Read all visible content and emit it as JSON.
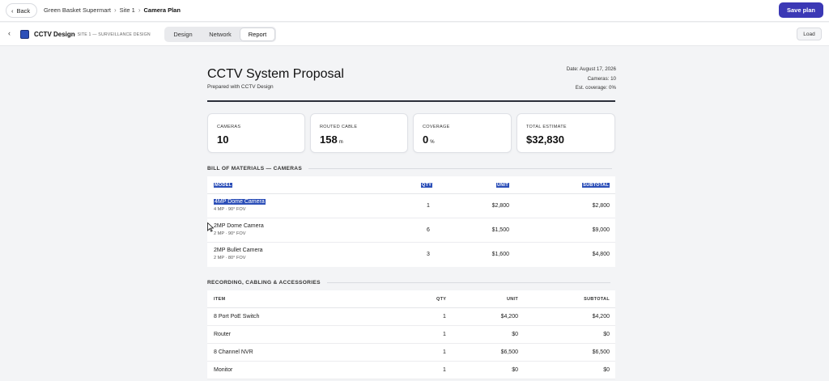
{
  "topbar": {
    "back_label": "Back",
    "breadcrumbs": [
      "Green Basket Supermart",
      "Site 1",
      "Camera Plan"
    ],
    "save_label": "Save plan"
  },
  "subbar": {
    "app_name": "CCTV Design",
    "app_subtitle": "· SITE 1 — SURVEILLANCE DESIGN",
    "tabs": [
      {
        "label": "Design",
        "active": false
      },
      {
        "label": "Network",
        "active": false
      },
      {
        "label": "Report",
        "active": true
      }
    ],
    "load_label": "Load"
  },
  "doc": {
    "title": "CCTV System Proposal",
    "subtitle": "Prepared with CCTV Design",
    "date": "Date: August 17, 2026",
    "cameras": "Cameras: 10",
    "coverage": "Est. coverage: 0%"
  },
  "cards": [
    {
      "label": "CAMERAS",
      "value": "10",
      "unit": ""
    },
    {
      "label": "ROUTED CABLE",
      "value": "158",
      "unit": "m"
    },
    {
      "label": "COVERAGE",
      "value": "0",
      "unit": "%"
    },
    {
      "label": "TOTAL ESTIMATE",
      "value": "$32,830",
      "unit": ""
    }
  ],
  "cameras_table": {
    "heading": "BILL OF MATERIALS — CAMERAS",
    "columns": [
      "MODEL",
      "QTY",
      "UNIT",
      "SUBTOTAL"
    ],
    "rows": [
      {
        "model": "4MP Dome Camera",
        "spec": "4 MP · 90° FOV",
        "qty": "1",
        "unit": "$2,800",
        "subtotal": "$2,800"
      },
      {
        "model": "2MP Dome Camera",
        "spec": "2 MP · 90° FOV",
        "qty": "6",
        "unit": "$1,500",
        "subtotal": "$9,000"
      },
      {
        "model": "2MP Bullet Camera",
        "spec": "2 MP · 80° FOV",
        "qty": "3",
        "unit": "$1,600",
        "subtotal": "$4,800"
      }
    ]
  },
  "accessories_table": {
    "heading": "RECORDING, CABLING & ACCESSORIES",
    "columns": [
      "ITEM",
      "QTY",
      "UNIT",
      "SUBTOTAL"
    ],
    "rows": [
      {
        "item": "8 Port PoE Switch",
        "qty": "1",
        "unit": "$4,200",
        "subtotal": "$4,200"
      },
      {
        "item": "Router",
        "qty": "1",
        "unit": "$0",
        "subtotal": "$0"
      },
      {
        "item": "8 Channel NVR",
        "qty": "1",
        "unit": "$6,500",
        "subtotal": "$6,500"
      },
      {
        "item": "Monitor",
        "qty": "1",
        "unit": "$0",
        "subtotal": "$0"
      }
    ]
  }
}
